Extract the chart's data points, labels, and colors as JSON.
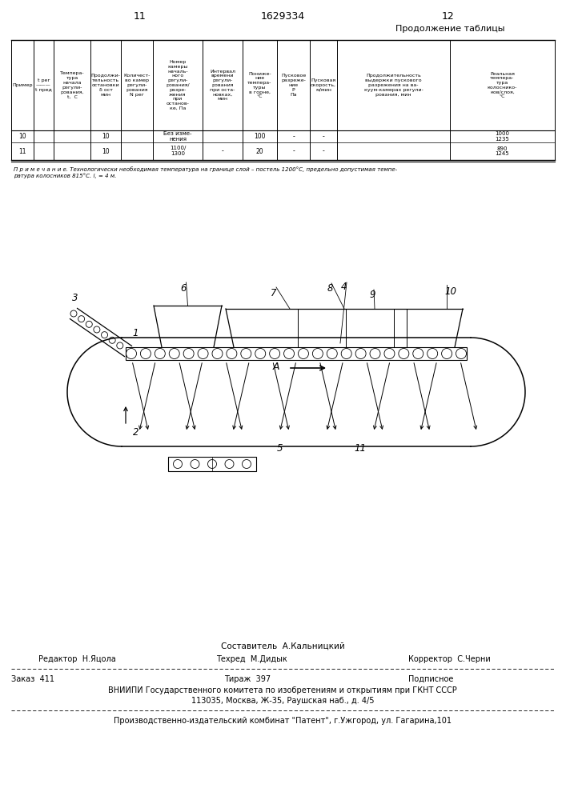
{
  "page_left": "11",
  "page_center": "1629334",
  "page_right": "12",
  "continuation_title": "Продолжение таблицы",
  "note_text": "П р и м е ч а н и е. Технологически необходимая температура на границе слой – постель 1200°C, предельно допустимая темпе-\nратура колосников 815°C. l, = 4 м.",
  "footer_composer": "Составитель  А.Кальницкий",
  "footer_editor": "Редактор  Н.Яцола",
  "footer_tech": "Техред  М.Дидык",
  "footer_corrector": "Корректор  С.Черни",
  "footer_order": "Заказ  411",
  "footer_circulation": "Тираж  397",
  "footer_subscription": "Подписное",
  "footer_vniipи": "ВНИИПИ Государственного комитета по изобретениям и открытиям при ГКНТ СССР",
  "footer_address": "113035, Москва, Ж-35, Раушская наб., д. 4/5",
  "footer_publisher": "Производственно-издательский комбинат \"Патент\", г.Ужгород, ул. Гагарина,101",
  "bg_color": "#ffffff",
  "text_color": "#000000"
}
